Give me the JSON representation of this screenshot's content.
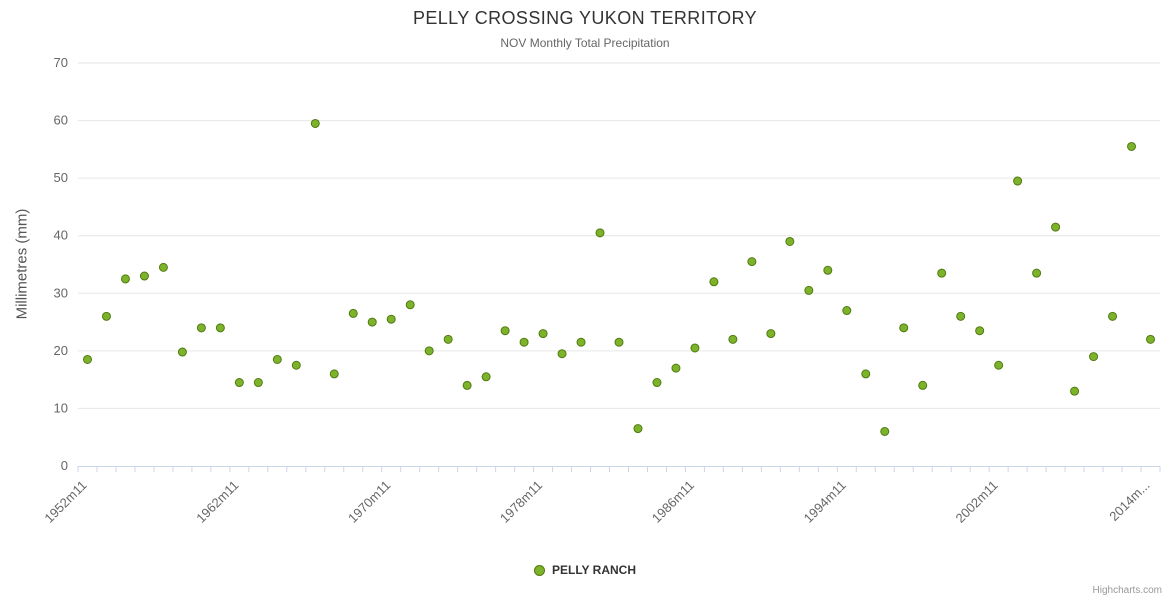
{
  "chart": {
    "title": "PELLY CROSSING YUKON TERRITORY",
    "subtitle": "NOV Monthly Total Precipitation"
  },
  "legend": {
    "label": "PELLY RANCH"
  },
  "credits": "Highcharts.com",
  "colors": {
    "marker": "#7db32a",
    "marker_border": "#507a12",
    "grid": "#e6e6e6",
    "axis_line": "#ccd6eb",
    "axis_label": "#666666",
    "title": "#333333",
    "subtitle": "#666666"
  },
  "chart_data": {
    "type": "scatter",
    "title": "PELLY CROSSING YUKON TERRITORY",
    "subtitle": "NOV Monthly Total Precipitation",
    "xlabel": "",
    "ylabel": "Millimetres (mm)",
    "ylim": [
      0,
      70
    ],
    "yticks": [
      0,
      10,
      20,
      30,
      40,
      50,
      60,
      70
    ],
    "grid": true,
    "legend_position": "bottom",
    "num_points": 57,
    "x_tick_labels": [
      {
        "index": 0,
        "label": "1952m11"
      },
      {
        "index": 8,
        "label": "1962m11"
      },
      {
        "index": 16,
        "label": "1970m11"
      },
      {
        "index": 24,
        "label": "1978m11"
      },
      {
        "index": 32,
        "label": "1986m11"
      },
      {
        "index": 40,
        "label": "1994m11"
      },
      {
        "index": 48,
        "label": "2002m11"
      },
      {
        "index": 56,
        "label": "2014m..."
      }
    ],
    "series": [
      {
        "name": "PELLY RANCH",
        "values": [
          18.5,
          26,
          32.5,
          33,
          34.5,
          19.8,
          24,
          24,
          14.5,
          14.5,
          18.5,
          17.5,
          59.5,
          16,
          26.5,
          25,
          25.5,
          28,
          20,
          22,
          14,
          15.5,
          23.5,
          21.5,
          23,
          19.5,
          21.5,
          40.5,
          21.5,
          6.5,
          14.5,
          17,
          20.5,
          32,
          22,
          35.5,
          23,
          39,
          30.5,
          34,
          27,
          16,
          6,
          24,
          14,
          33.5,
          26,
          23.5,
          17.5,
          49.5,
          33.5,
          41.5,
          13,
          19,
          26,
          55.5,
          22
        ]
      }
    ]
  }
}
